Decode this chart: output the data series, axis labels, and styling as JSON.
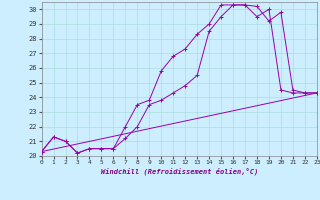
{
  "xlabel": "Windchill (Refroidissement éolien,°C)",
  "bg_color": "#cceeff",
  "grid_color": "#aadddd",
  "line_color": "#9900aa",
  "ylim": [
    20,
    30.5
  ],
  "xlim": [
    0,
    23
  ],
  "yticks": [
    20,
    21,
    22,
    23,
    24,
    25,
    26,
    27,
    28,
    29,
    30
  ],
  "xticks": [
    0,
    1,
    2,
    3,
    4,
    5,
    6,
    7,
    8,
    9,
    10,
    11,
    12,
    13,
    14,
    15,
    16,
    17,
    18,
    19,
    20,
    21,
    22,
    23
  ],
  "series1_x": [
    0,
    1,
    2,
    3,
    4,
    5,
    6,
    7,
    8,
    9,
    10,
    11,
    12,
    13,
    14,
    15,
    16,
    17,
    18,
    19,
    20,
    21,
    22,
    23
  ],
  "series1_y": [
    20.3,
    21.3,
    21.0,
    20.2,
    20.5,
    20.5,
    20.5,
    21.2,
    22.0,
    23.5,
    23.8,
    24.3,
    24.8,
    25.5,
    28.5,
    29.5,
    30.3,
    30.3,
    30.2,
    29.2,
    29.8,
    24.5,
    24.3,
    24.3
  ],
  "series2_x": [
    0,
    1,
    2,
    3,
    4,
    5,
    6,
    7,
    8,
    9,
    10,
    11,
    12,
    13,
    14,
    15,
    16,
    17,
    18,
    19,
    20,
    21,
    22,
    23
  ],
  "series2_y": [
    20.3,
    21.3,
    21.0,
    20.2,
    20.5,
    20.5,
    20.5,
    22.0,
    23.5,
    23.8,
    25.8,
    26.8,
    27.3,
    28.3,
    29.0,
    30.3,
    30.3,
    30.3,
    29.5,
    30.0,
    24.5,
    24.3,
    24.3,
    24.3
  ],
  "series3_x": [
    0,
    23
  ],
  "series3_y": [
    20.3,
    24.3
  ]
}
